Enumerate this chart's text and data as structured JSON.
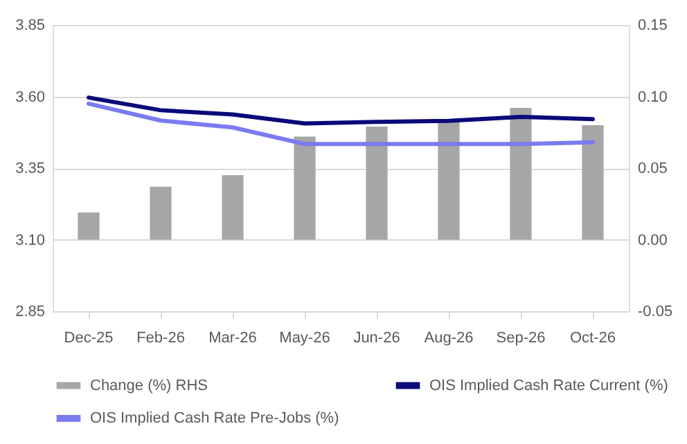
{
  "chart_data": {
    "type": "bar",
    "categories": [
      "Dec-25",
      "Feb-26",
      "Mar-26",
      "May-26",
      "Jun-26",
      "Aug-26",
      "Sep-26",
      "Oct-26"
    ],
    "series": [
      {
        "name": "Change (%) RHS",
        "type": "bar",
        "axis": "y2",
        "color": "#a6a6a6",
        "values": [
          0.019,
          0.037,
          0.045,
          0.072,
          0.079,
          0.083,
          0.092,
          0.08
        ]
      },
      {
        "name": "OIS Implied Cash Rate Current (%)",
        "type": "line",
        "color": "#0a0a7a",
        "values": [
          3.596,
          3.552,
          3.537,
          3.506,
          3.511,
          3.515,
          3.529,
          3.521
        ]
      },
      {
        "name": "OIS Implied Cash Rate Pre-Jobs (%)",
        "type": "line",
        "color": "#7b7bf0",
        "values": [
          3.575,
          3.516,
          3.492,
          3.434,
          3.434,
          3.434,
          3.434,
          3.44
        ]
      }
    ],
    "ylim": [
      2.85,
      3.85
    ],
    "yticks": [
      2.85,
      {
        "value": 3.1,
        "label": "3.10"
      },
      3.35,
      {
        "value": 3.6,
        "label": "3.60"
      },
      3.85
    ],
    "y2lim": [
      -0.05,
      0.15
    ],
    "y2ticks": [
      -0.05,
      {
        "value": 0,
        "label": "0.00"
      },
      0.05,
      {
        "value": 0.1,
        "label": "0.10"
      },
      0.15
    ],
    "grid": "y",
    "legend": "bottom"
  }
}
